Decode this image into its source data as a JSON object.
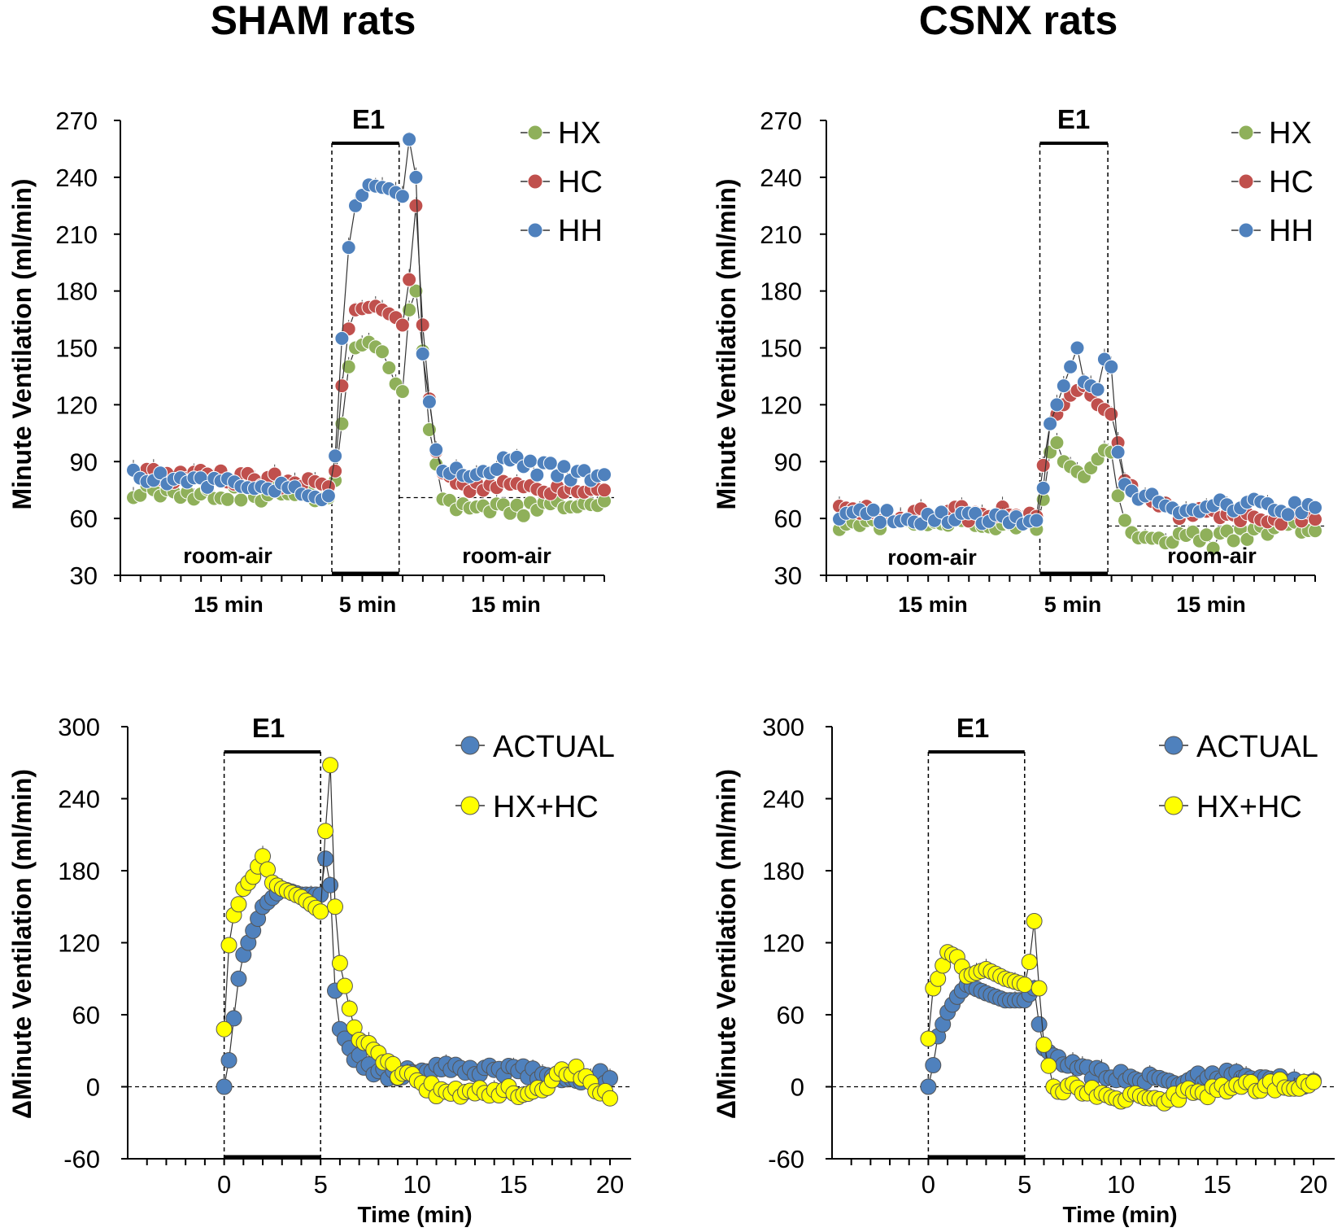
{
  "titles": {
    "sham": "SHAM rats",
    "csnx": "CSNX rats"
  },
  "colors": {
    "HX": "#8FB05A",
    "HC": "#C0504D",
    "HH": "#4F81BD",
    "ACTUAL": "#4F81BD",
    "HXHC": "#FFFF00"
  },
  "chart_data": [
    {
      "id": "sham-top",
      "type": "scatter",
      "title": "SHAM rats",
      "ylabel": "Minute Ventilation (ml/min)",
      "ylim": [
        30,
        270
      ],
      "yticks": [
        "270",
        "240",
        "210",
        "180",
        "150",
        "120",
        "90",
        "60",
        "30"
      ],
      "segments": [
        "15 min",
        "5 min",
        "15 min"
      ],
      "phase_labels": [
        "room-air",
        "room-air"
      ],
      "box_label": "E1",
      "baseline": 71,
      "legend": [
        "HX",
        "HC",
        "HH"
      ],
      "n_points": 71,
      "stim_start": 30,
      "stim_end": 40,
      "profiles": {
        "HX": [
          [
            0,
            75
          ],
          [
            29,
            72
          ],
          [
            30,
            80
          ],
          [
            31,
            110
          ],
          [
            32,
            140
          ],
          [
            33,
            150
          ],
          [
            35,
            153
          ],
          [
            37,
            148
          ],
          [
            39,
            131
          ],
          [
            40,
            127
          ],
          [
            41,
            170
          ],
          [
            42,
            180
          ],
          [
            43,
            150
          ],
          [
            44,
            105
          ],
          [
            45,
            85
          ],
          [
            46,
            68
          ],
          [
            50,
            64
          ],
          [
            70,
            67
          ]
        ],
        "HC": [
          [
            0,
            84
          ],
          [
            29,
            78
          ],
          [
            30,
            85
          ],
          [
            31,
            130
          ],
          [
            32,
            160
          ],
          [
            33,
            170
          ],
          [
            36,
            172
          ],
          [
            39,
            166
          ],
          [
            40,
            162
          ],
          [
            41,
            186
          ],
          [
            42,
            225
          ],
          [
            43,
            160
          ],
          [
            44,
            120
          ],
          [
            45,
            95
          ],
          [
            46,
            85
          ],
          [
            50,
            78
          ],
          [
            70,
            72
          ]
        ],
        "HH": [
          [
            0,
            83
          ],
          [
            29,
            72
          ],
          [
            30,
            93
          ],
          [
            31,
            155
          ],
          [
            32,
            203
          ],
          [
            33,
            225
          ],
          [
            35,
            236
          ],
          [
            38,
            234
          ],
          [
            40,
            230
          ],
          [
            41,
            260
          ],
          [
            42,
            240
          ],
          [
            43,
            150
          ],
          [
            44,
            118
          ],
          [
            45,
            97
          ],
          [
            46,
            88
          ],
          [
            50,
            80
          ],
          [
            55,
            90
          ],
          [
            70,
            80
          ]
        ]
      }
    },
    {
      "id": "csnx-top",
      "type": "scatter",
      "title": "CSNX rats",
      "ylabel": "Minute Ventilation (ml/min)",
      "ylim": [
        30,
        270
      ],
      "yticks": [
        "270",
        "240",
        "210",
        "180",
        "150",
        "120",
        "90",
        "60",
        "30"
      ],
      "segments": [
        "15 min",
        "5 min",
        "15 min"
      ],
      "phase_labels": [
        "room-air",
        "room-air"
      ],
      "box_label": "E1",
      "baseline": 56,
      "legend": [
        "HX",
        "HC",
        "HH"
      ],
      "n_points": 71,
      "stim_start": 30,
      "stim_end": 40,
      "profiles": {
        "HX": [
          [
            0,
            57
          ],
          [
            29,
            57
          ],
          [
            30,
            70
          ],
          [
            31,
            95
          ],
          [
            32,
            100
          ],
          [
            33,
            90
          ],
          [
            36,
            82
          ],
          [
            39,
            96
          ],
          [
            40,
            95
          ],
          [
            41,
            72
          ],
          [
            42,
            59
          ],
          [
            43,
            50
          ],
          [
            45,
            48
          ],
          [
            50,
            50
          ],
          [
            55,
            48
          ],
          [
            60,
            52
          ],
          [
            70,
            55
          ]
        ],
        "HC": [
          [
            0,
            63
          ],
          [
            29,
            62
          ],
          [
            30,
            88
          ],
          [
            31,
            110
          ],
          [
            32,
            115
          ],
          [
            34,
            125
          ],
          [
            36,
            130
          ],
          [
            38,
            120
          ],
          [
            40,
            115
          ],
          [
            41,
            100
          ],
          [
            42,
            80
          ],
          [
            44,
            70
          ],
          [
            50,
            62
          ],
          [
            60,
            60
          ],
          [
            70,
            60
          ]
        ],
        "HH": [
          [
            0,
            61
          ],
          [
            29,
            59
          ],
          [
            30,
            76
          ],
          [
            31,
            110
          ],
          [
            32,
            120
          ],
          [
            34,
            140
          ],
          [
            35,
            150
          ],
          [
            36,
            132
          ],
          [
            38,
            128
          ],
          [
            39,
            144
          ],
          [
            40,
            140
          ],
          [
            41,
            95
          ],
          [
            42,
            78
          ],
          [
            45,
            72
          ],
          [
            50,
            64
          ],
          [
            60,
            67
          ],
          [
            70,
            65
          ]
        ]
      }
    },
    {
      "id": "sham-bottom",
      "type": "scatter",
      "xlabel": "Time (min)",
      "ylabel": "ΔMinute Ventilation (ml/min)",
      "xlim": [
        -5,
        20
      ],
      "ylim": [
        -60,
        300
      ],
      "xticks": [
        "0",
        "5",
        "10",
        "15",
        "20"
      ],
      "yticks": [
        "300",
        "240",
        "180",
        "120",
        "60",
        "0",
        "-60"
      ],
      "box_label": "E1",
      "legend": [
        "ACTUAL",
        "HX+HC"
      ],
      "profiles": {
        "ACTUAL": [
          [
            0,
            0
          ],
          [
            0.25,
            22
          ],
          [
            0.5,
            57
          ],
          [
            0.75,
            90
          ],
          [
            1,
            110
          ],
          [
            1.5,
            130
          ],
          [
            2,
            150
          ],
          [
            3,
            165
          ],
          [
            4,
            160
          ],
          [
            5,
            160
          ],
          [
            5.25,
            190
          ],
          [
            5.5,
            168
          ],
          [
            5.75,
            80
          ],
          [
            6,
            48
          ],
          [
            6.5,
            32
          ],
          [
            7,
            22
          ],
          [
            8,
            13
          ],
          [
            9,
            10
          ],
          [
            10,
            12
          ],
          [
            11.5,
            18
          ],
          [
            13,
            12
          ],
          [
            15,
            15
          ],
          [
            17,
            8
          ],
          [
            20,
            8
          ]
        ],
        "HXHC": [
          [
            0,
            48
          ],
          [
            0.25,
            118
          ],
          [
            0.5,
            143
          ],
          [
            0.75,
            152
          ],
          [
            1,
            165
          ],
          [
            1.5,
            175
          ],
          [
            2,
            192
          ],
          [
            2.5,
            170
          ],
          [
            3,
            165
          ],
          [
            4,
            158
          ],
          [
            5,
            146
          ],
          [
            5.25,
            213
          ],
          [
            5.5,
            268
          ],
          [
            5.75,
            150
          ],
          [
            6,
            103
          ],
          [
            6.5,
            65
          ],
          [
            7,
            40
          ],
          [
            8,
            25
          ],
          [
            9,
            12
          ],
          [
            10,
            5
          ],
          [
            11,
            -3
          ],
          [
            12,
            -5
          ],
          [
            14,
            -2
          ],
          [
            16,
            -5
          ],
          [
            18,
            15
          ],
          [
            20,
            -8
          ]
        ]
      }
    },
    {
      "id": "csnx-bottom",
      "type": "scatter",
      "xlabel": "Time (min)",
      "ylabel": "ΔMinute Ventilation (ml/min)",
      "xlim": [
        -5,
        20
      ],
      "ylim": [
        -60,
        300
      ],
      "xticks": [
        "0",
        "5",
        "10",
        "15",
        "20"
      ],
      "yticks": [
        "300",
        "240",
        "180",
        "120",
        "60",
        "0",
        "-60"
      ],
      "box_label": "E1",
      "legend": [
        "ACTUAL",
        "HX+HC"
      ],
      "profiles": {
        "ACTUAL": [
          [
            0,
            0
          ],
          [
            0.25,
            18
          ],
          [
            0.5,
            42
          ],
          [
            1,
            62
          ],
          [
            1.5,
            75
          ],
          [
            2,
            85
          ],
          [
            3,
            78
          ],
          [
            4,
            72
          ],
          [
            5,
            72
          ],
          [
            5.5,
            82
          ],
          [
            5.75,
            52
          ],
          [
            6,
            32
          ],
          [
            7,
            20
          ],
          [
            8,
            12
          ],
          [
            10,
            10
          ],
          [
            12,
            5
          ],
          [
            14,
            8
          ],
          [
            16,
            10
          ],
          [
            18,
            5
          ],
          [
            20,
            5
          ]
        ],
        "HXHC": [
          [
            0,
            40
          ],
          [
            0.25,
            82
          ],
          [
            0.5,
            90
          ],
          [
            1,
            112
          ],
          [
            1.5,
            108
          ],
          [
            2,
            92
          ],
          [
            3,
            98
          ],
          [
            4,
            90
          ],
          [
            5,
            85
          ],
          [
            5.25,
            104
          ],
          [
            5.5,
            138
          ],
          [
            5.75,
            82
          ],
          [
            6,
            35
          ],
          [
            6.5,
            0
          ],
          [
            8,
            -2
          ],
          [
            10,
            -8
          ],
          [
            12,
            -10
          ],
          [
            14,
            -5
          ],
          [
            16,
            0
          ],
          [
            18,
            2
          ],
          [
            20,
            0
          ]
        ]
      }
    }
  ]
}
